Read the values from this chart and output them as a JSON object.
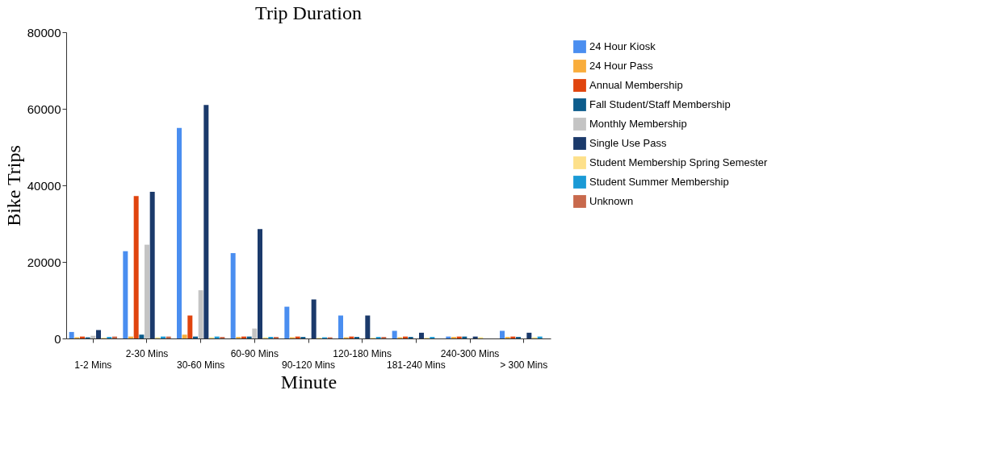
{
  "chart_data": {
    "type": "bar",
    "title": "Trip Duration",
    "xlabel": "Minute",
    "ylabel": "Bike Trips",
    "categories": [
      "1-2 Mins",
      "2-30 Mins",
      "30-60 Mins",
      "60-90 Mins",
      "90-120 Mins",
      "120-180 Mins",
      "181-240 Mins",
      "240-300 Mins",
      "> 300 Mins"
    ],
    "ylim": [
      0,
      80000
    ],
    "yticks": [
      0,
      20000,
      40000,
      60000,
      80000
    ],
    "grid": false,
    "legend": "top right",
    "series": [
      {
        "name": "24 Hour Kiosk",
        "color": "#4a8ef0",
        "values": [
          1700,
          22800,
          55000,
          22300,
          8300,
          6000,
          2000,
          500,
          2000
        ]
      },
      {
        "name": "24 Hour Pass",
        "color": "#f9ad3c",
        "values": [
          300,
          500,
          1000,
          400,
          300,
          300,
          300,
          400,
          400
        ]
      },
      {
        "name": "Annual Membership",
        "color": "#e0440e",
        "values": [
          500,
          37200,
          6000,
          500,
          500,
          500,
          500,
          500,
          500
        ]
      },
      {
        "name": "Fall Student/Staff Membership",
        "color": "#0d5c8c",
        "values": [
          300,
          1000,
          500,
          500,
          400,
          400,
          400,
          500,
          400
        ]
      },
      {
        "name": "Monthly Membership",
        "color": "#c4c4c4",
        "values": [
          700,
          24500,
          12600,
          2600,
          null,
          null,
          null,
          null,
          null
        ]
      },
      {
        "name": "Single Use Pass",
        "color": "#1b3a6b",
        "values": [
          2200,
          38300,
          61000,
          28600,
          10200,
          6000,
          1500,
          500,
          1500
        ]
      },
      {
        "name": "Student Membership Spring Semester",
        "color": "#fde08a",
        "values": [
          200,
          300,
          300,
          300,
          200,
          200,
          200,
          300,
          300
        ]
      },
      {
        "name": "Student Summer Membership",
        "color": "#1a9ad6",
        "values": [
          400,
          500,
          500,
          400,
          300,
          400,
          400,
          0,
          500
        ]
      },
      {
        "name": "Unknown",
        "color": "#c8694c",
        "values": [
          500,
          500,
          400,
          400,
          300,
          400,
          0,
          0,
          0
        ]
      }
    ]
  }
}
